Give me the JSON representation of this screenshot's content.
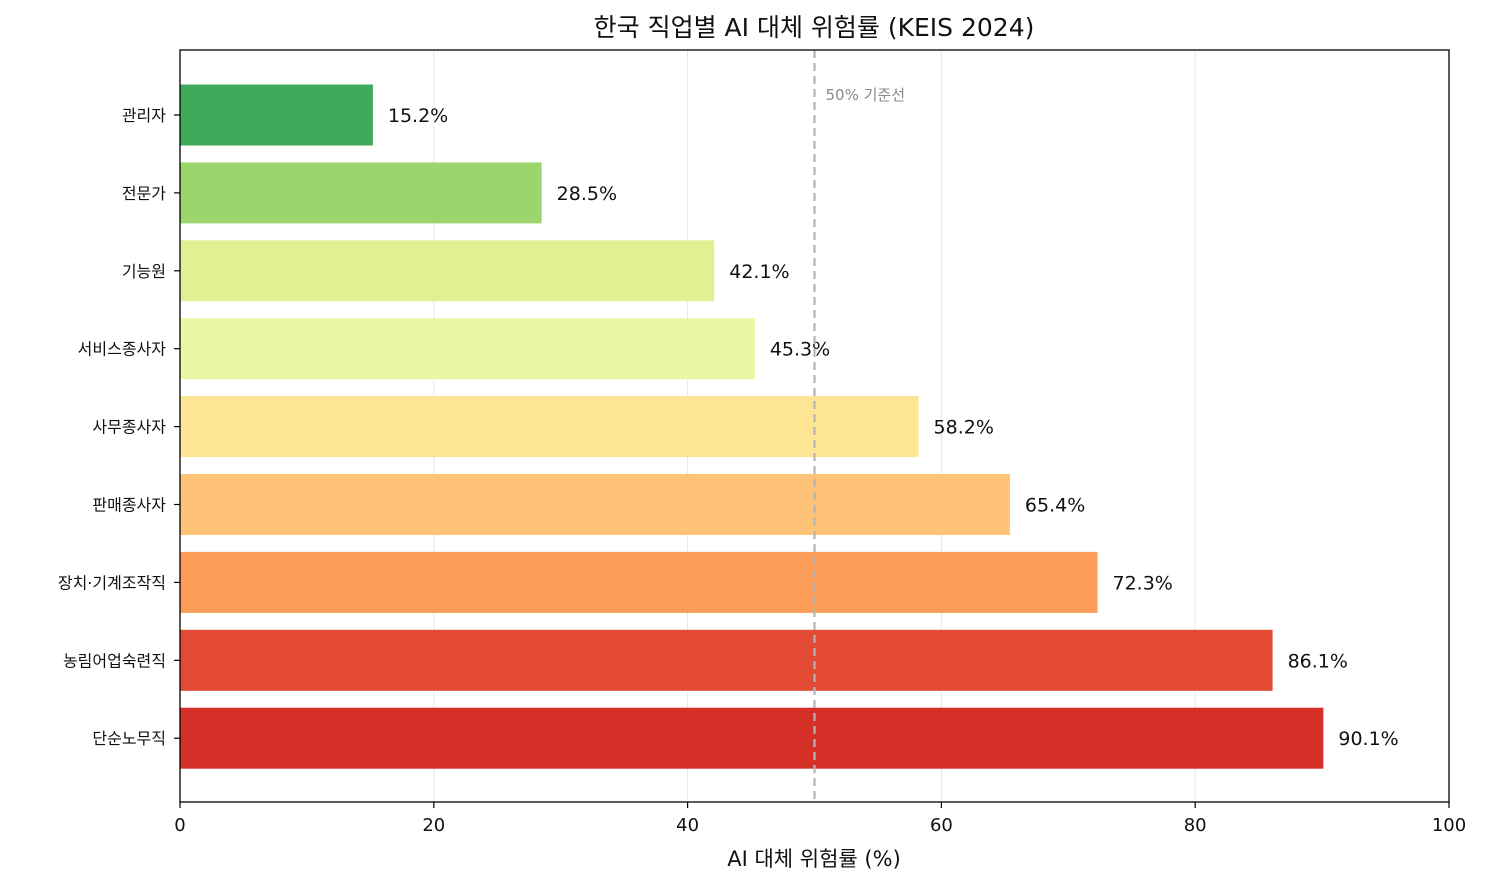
{
  "chart_data": {
    "type": "bar",
    "orientation": "horizontal",
    "title": "한국 직업별 AI 대체 위험률 (KEIS 2024)",
    "xlabel": "AI 대체 위험률 (%)",
    "ylabel": "",
    "xlim": [
      0,
      100
    ],
    "xticks": [
      "0",
      "20",
      "40",
      "60",
      "80",
      "100"
    ],
    "grid": "vertical",
    "categories": [
      "관리자",
      "전문가",
      "기능원",
      "서비스종사자",
      "사무종사자",
      "판매종사자",
      "장치·기계조작직",
      "농림어업숙련직",
      "단순노무직"
    ],
    "values": [
      15.2,
      28.5,
      42.1,
      45.3,
      58.2,
      65.4,
      72.3,
      86.1,
      90.1
    ],
    "value_labels": [
      "15.2%",
      "28.5%",
      "42.1%",
      "45.3%",
      "58.2%",
      "65.4%",
      "72.3%",
      "86.1%",
      "90.1%"
    ],
    "colors": [
      "#3faa59",
      "#9bd56c",
      "#e0f194",
      "#e9f6a2",
      "#fee593",
      "#fec376",
      "#fb9c59",
      "#e34a33",
      "#d62f28"
    ],
    "reference_line": {
      "value": 50,
      "label": "50% 기준선",
      "color": "#b5b5b5"
    }
  }
}
